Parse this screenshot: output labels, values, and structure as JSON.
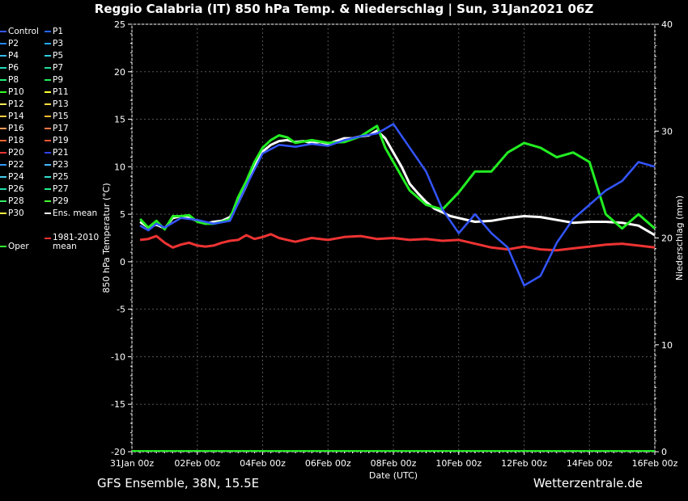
{
  "header": {
    "title": "Reggio Calabria  (IT)  850 hPa Temp. & Niederschlag | Sun, 31Jan2021 06Z"
  },
  "footer": {
    "left": "GFS Ensemble, 38N, 15.5E",
    "right": "Wetterzentrale.de"
  },
  "legend": {
    "items": [
      {
        "label": "Control",
        "color": "#3355ff"
      },
      {
        "label": "P1",
        "color": "#2266ff"
      },
      {
        "label": "P2",
        "color": "#2288ff"
      },
      {
        "label": "P3",
        "color": "#22aaff"
      },
      {
        "label": "P4",
        "color": "#33bbee"
      },
      {
        "label": "P5",
        "color": "#33ccdd"
      },
      {
        "label": "P6",
        "color": "#22ddbb"
      },
      {
        "label": "P7",
        "color": "#22dd99"
      },
      {
        "label": "P8",
        "color": "#22ee77"
      },
      {
        "label": "P9",
        "color": "#22ee55"
      },
      {
        "label": "P10",
        "color": "#33ff22"
      },
      {
        "label": "P11",
        "color": "#ffff33"
      },
      {
        "label": "P12",
        "color": "#ffee55"
      },
      {
        "label": "P13",
        "color": "#ffdd44"
      },
      {
        "label": "P14",
        "color": "#ffcc44"
      },
      {
        "label": "P15",
        "color": "#ffbb33"
      },
      {
        "label": "P16",
        "color": "#ff9955"
      },
      {
        "label": "P17",
        "color": "#ff7744"
      },
      {
        "label": "P18",
        "color": "#ff6633"
      },
      {
        "label": "P19",
        "color": "#ee5533"
      },
      {
        "label": "P20",
        "color": "#ee3333"
      },
      {
        "label": "P21",
        "color": "#3344ff"
      },
      {
        "label": "P22",
        "color": "#3399ff"
      },
      {
        "label": "P23",
        "color": "#44bbff"
      },
      {
        "label": "P24",
        "color": "#44ccee"
      },
      {
        "label": "P25",
        "color": "#33ddcc"
      },
      {
        "label": "P26",
        "color": "#22ddaa"
      },
      {
        "label": "P27",
        "color": "#22ee88"
      },
      {
        "label": "P28",
        "color": "#33ee66"
      },
      {
        "label": "P29",
        "color": "#44ff33"
      },
      {
        "label": "P30",
        "color": "#ffff44"
      },
      {
        "label": "Ens. mean",
        "color": "#ffffff"
      },
      {
        "label": "1981-2010 mean",
        "color": "#ee3333"
      },
      {
        "label": "Oper",
        "color": "#33ff33"
      }
    ]
  },
  "chart_data": {
    "type": "line",
    "title": "Reggio Calabria  (IT)  850 hPa Temp. & Niederschlag | Sun, 31Jan2021 06Z",
    "xlabel": "Date (UTC)",
    "ylabel": "850 hPa Temperatur (°C)",
    "y2label": "Niederschlag (mm)",
    "x_ticks": [
      "31Jan 00z",
      "02Feb 00z",
      "04Feb 00z",
      "06Feb 00z",
      "08Feb 00z",
      "10Feb 00z",
      "12Feb 00z",
      "14Feb 00z",
      "16Feb 00z"
    ],
    "x_range_days": [
      0,
      16
    ],
    "ylim": [
      -20,
      25
    ],
    "y_ticks": [
      -20,
      -15,
      -10,
      -5,
      0,
      5,
      10,
      15,
      20,
      25
    ],
    "y2lim": [
      0,
      40
    ],
    "y2_ticks": [
      0,
      10,
      20,
      30,
      40
    ],
    "grid": true,
    "legend_position": "left",
    "series": [
      {
        "name": "Ens. mean",
        "axis": "temp",
        "color": "#ffffff",
        "width": 3,
        "x": [
          0.25,
          0.5,
          0.75,
          1,
          1.25,
          1.5,
          1.75,
          2,
          2.25,
          2.5,
          2.75,
          3,
          3.25,
          3.5,
          3.75,
          4,
          4.25,
          4.5,
          4.75,
          5,
          5.25,
          5.5,
          5.75,
          6,
          6.25,
          6.5,
          6.75,
          7,
          7.25,
          7.5,
          7.75,
          8,
          8.25,
          8.5,
          8.75,
          9,
          9.25,
          9.5,
          9.75,
          10,
          10.5,
          11,
          11.5,
          12,
          12.5,
          13,
          13.5,
          14,
          14.5,
          15,
          15.5,
          16
        ],
        "y": [
          4.2,
          3.6,
          3.9,
          3.5,
          4.6,
          4.8,
          4.6,
          4.3,
          4.0,
          4.2,
          4.3,
          4.7,
          6.2,
          8.0,
          10.0,
          11.6,
          12.3,
          12.7,
          12.8,
          12.6,
          12.7,
          12.5,
          12.6,
          12.4,
          12.7,
          13.0,
          13.0,
          13.2,
          13.3,
          13.8,
          13.0,
          11.5,
          10.0,
          8.2,
          7.2,
          6.3,
          5.6,
          5.2,
          4.8,
          4.6,
          4.2,
          4.3,
          4.6,
          4.8,
          4.7,
          4.4,
          4.1,
          4.2,
          4.2,
          4.1,
          3.8,
          2.8
        ]
      },
      {
        "name": "1981-2010 mean",
        "axis": "temp",
        "color": "#ee3333",
        "width": 3,
        "x": [
          0.25,
          0.5,
          0.75,
          1,
          1.25,
          1.5,
          1.75,
          2,
          2.25,
          2.5,
          2.75,
          3,
          3.25,
          3.5,
          3.75,
          4,
          4.25,
          4.5,
          4.75,
          5,
          5.5,
          6,
          6.5,
          7,
          7.5,
          8,
          8.5,
          9,
          9.5,
          10,
          10.5,
          11,
          11.5,
          12,
          12.5,
          13,
          13.5,
          14,
          14.5,
          15,
          15.5,
          16
        ],
        "y": [
          2.3,
          2.4,
          2.7,
          2.0,
          1.5,
          1.8,
          2.0,
          1.7,
          1.6,
          1.7,
          2.0,
          2.2,
          2.3,
          2.8,
          2.4,
          2.6,
          2.9,
          2.5,
          2.3,
          2.1,
          2.5,
          2.3,
          2.6,
          2.7,
          2.4,
          2.5,
          2.3,
          2.4,
          2.2,
          2.3,
          1.9,
          1.5,
          1.3,
          1.6,
          1.3,
          1.2,
          1.4,
          1.6,
          1.8,
          1.9,
          1.7,
          1.5
        ]
      },
      {
        "name": "Oper",
        "axis": "temp",
        "color": "#22ee22",
        "width": 3,
        "x": [
          0.25,
          0.5,
          0.75,
          1,
          1.25,
          1.5,
          1.75,
          2,
          2.25,
          2.5,
          2.75,
          3,
          3.25,
          3.5,
          3.75,
          4,
          4.25,
          4.5,
          4.75,
          5,
          5.5,
          6,
          6.5,
          7,
          7.5,
          7.75,
          8,
          8.5,
          9,
          9.5,
          10,
          10.5,
          11,
          11.5,
          12,
          12.5,
          13,
          13.5,
          14,
          14.5,
          15,
          15.5,
          16
        ],
        "y": [
          4.5,
          3.6,
          4.3,
          3.4,
          4.8,
          4.8,
          4.9,
          4.2,
          4.0,
          4.0,
          4.2,
          4.5,
          6.8,
          8.5,
          10.5,
          12.0,
          12.8,
          13.3,
          13.1,
          12.5,
          12.8,
          12.5,
          12.6,
          13.2,
          14.3,
          12.0,
          10.5,
          7.5,
          6.0,
          5.5,
          7.3,
          9.5,
          9.5,
          11.5,
          12.5,
          12.0,
          11.0,
          11.5,
          10.5,
          5.0,
          3.5,
          5.0,
          3.5
        ]
      },
      {
        "name": "Control",
        "axis": "temp",
        "color": "#3355ff",
        "width": 2.5,
        "x": [
          0.25,
          0.5,
          0.75,
          1,
          1.5,
          2,
          2.5,
          3,
          3.5,
          4,
          4.5,
          5,
          5.5,
          6,
          6.5,
          7,
          7.5,
          8,
          8.5,
          9,
          9.5,
          10,
          10.5,
          11,
          11.5,
          12,
          12.5,
          13,
          13.5,
          14,
          14.5,
          15,
          15.5,
          16
        ],
        "y": [
          3.8,
          3.3,
          4.0,
          3.6,
          4.6,
          4.4,
          4.0,
          4.3,
          8.0,
          11.4,
          12.3,
          12.1,
          12.4,
          12.2,
          12.8,
          13.2,
          13.5,
          14.5,
          12.0,
          9.5,
          5.5,
          3.0,
          5.0,
          3.0,
          1.5,
          -2.5,
          -1.5,
          2.0,
          4.5,
          6.0,
          7.5,
          8.5,
          10.5,
          10.0
        ]
      }
    ],
    "precip_baseline_mm": 0
  }
}
